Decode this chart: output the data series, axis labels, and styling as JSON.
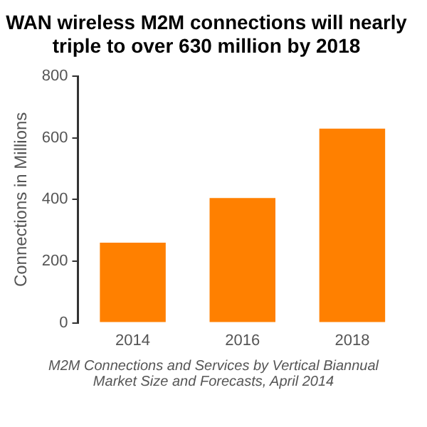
{
  "chart_data": {
    "type": "bar",
    "title": "WAN wireless M2M connections will nearly triple to over 630 million by 2018",
    "categories": [
      "2014",
      "2016",
      "2018"
    ],
    "values": [
      260,
      405,
      630
    ],
    "color": "#ff8000",
    "ylabel": "Connections in Millions",
    "ylim": [
      0,
      800
    ],
    "yticks": [
      0,
      200,
      400,
      600,
      800
    ],
    "grid": false,
    "legend": false,
    "annotations": [
      "M2M Connections and Services by Vertical Biannual Market Size and Forecasts, April 2014"
    ]
  }
}
